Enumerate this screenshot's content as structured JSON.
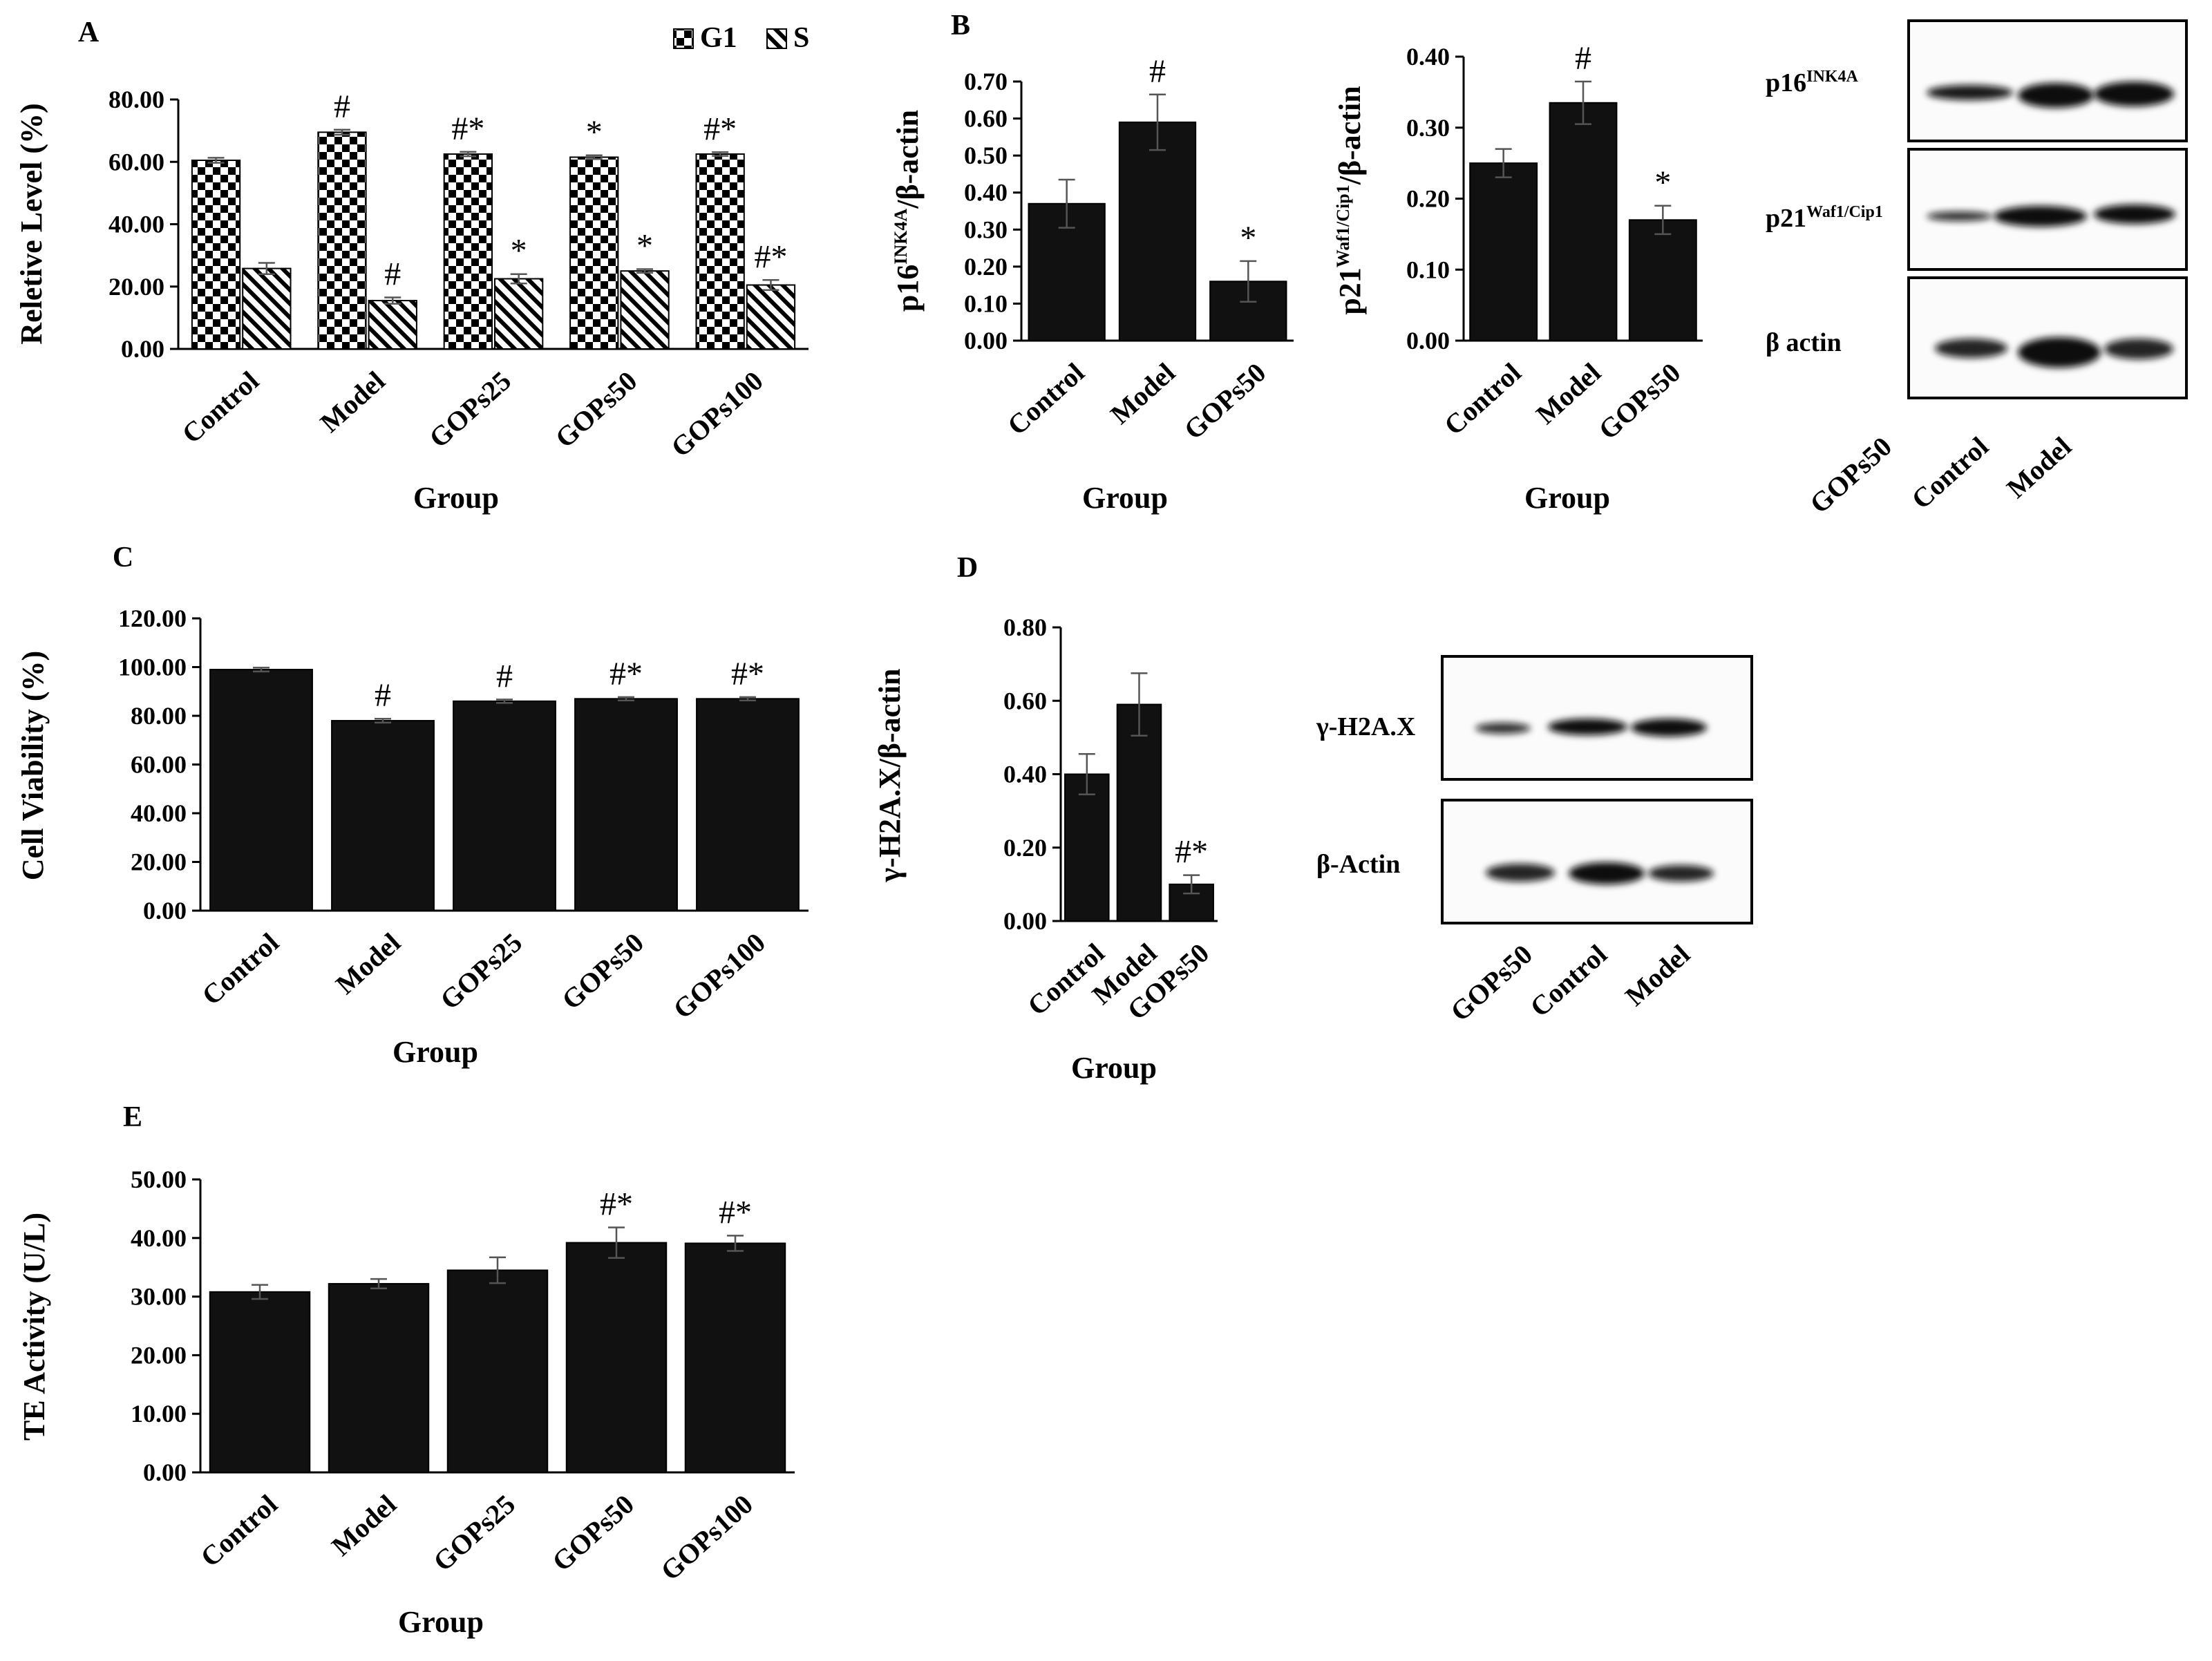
{
  "chart_data": [
    {
      "id": "A",
      "type": "bar",
      "panel_label": "A",
      "categories": [
        "Control",
        "Model",
        "GOPs25",
        "GOPs50",
        "GOPs100"
      ],
      "series": [
        {
          "name": "G1",
          "pattern": "checker",
          "values": [
            60.5,
            69.5,
            62.5,
            61.5,
            62.5
          ],
          "errors": [
            0.8,
            0.8,
            0.7,
            0.6,
            0.6
          ],
          "sig": [
            "",
            "#",
            "#*",
            "*",
            "#*"
          ]
        },
        {
          "name": "S",
          "pattern": "hatch",
          "values": [
            25.8,
            15.5,
            22.5,
            25.0,
            20.5
          ],
          "errors": [
            1.8,
            1.0,
            1.5,
            0.6,
            1.6
          ],
          "sig": [
            "",
            "#",
            "*",
            "*",
            "#*"
          ]
        }
      ],
      "yticks": [
        "0.00",
        "20.00",
        "40.00",
        "60.00",
        "80.00"
      ],
      "ylim": [
        0,
        80
      ],
      "ylabel": "Reletive Level (%)",
      "xlabel": "Group",
      "legend": "top-right"
    },
    {
      "id": "B1",
      "type": "bar",
      "panel_label": "B",
      "categories": [
        "Control",
        "Model",
        "GOPs50"
      ],
      "values": [
        0.37,
        0.59,
        0.16
      ],
      "errors": [
        0.065,
        0.075,
        0.055
      ],
      "sig": [
        "",
        "#",
        "*"
      ],
      "yticks": [
        "0.00",
        "0.10",
        "0.20",
        "0.30",
        "0.40",
        "0.50",
        "0.60",
        "0.70"
      ],
      "ylim": [
        0,
        0.7
      ],
      "ylabel": "p16INK4A/β-actin",
      "xlabel": "Group"
    },
    {
      "id": "B2",
      "type": "bar",
      "panel_label": "",
      "categories": [
        "Control",
        "Model",
        "GOPs50"
      ],
      "values": [
        0.25,
        0.335,
        0.17
      ],
      "errors": [
        0.02,
        0.03,
        0.02
      ],
      "sig": [
        "",
        "#",
        "*"
      ],
      "yticks": [
        "0.00",
        "0.10",
        "0.20",
        "0.30",
        "0.40"
      ],
      "ylim": [
        0,
        0.4
      ],
      "ylabel": "p21Waf1/Cip1/β-actin",
      "xlabel": "Group"
    },
    {
      "id": "C",
      "type": "bar",
      "panel_label": "C",
      "categories": [
        "Control",
        "Model",
        "GOPs25",
        "GOPs50",
        "GOPs100"
      ],
      "values": [
        99.0,
        78.0,
        86.0,
        87.0,
        87.0
      ],
      "errors": [
        0.8,
        0.8,
        0.7,
        0.7,
        0.7
      ],
      "sig": [
        "",
        "#",
        "#",
        "#*",
        "#*"
      ],
      "yticks": [
        "0.00",
        "20.00",
        "40.00",
        "60.00",
        "80.00",
        "100.00",
        "120.00"
      ],
      "ylim": [
        0,
        120
      ],
      "ylabel": "Cell Viability (%)",
      "xlabel": "Group"
    },
    {
      "id": "D",
      "type": "bar",
      "panel_label": "D",
      "categories": [
        "Control",
        "Model",
        "GOPs50"
      ],
      "values": [
        0.4,
        0.59,
        0.1
      ],
      "errors": [
        0.055,
        0.085,
        0.025
      ],
      "sig": [
        "",
        "",
        "#*"
      ],
      "yticks": [
        "0.00",
        "0.20",
        "0.40",
        "0.60",
        "0.80"
      ],
      "ylim": [
        0,
        0.8
      ],
      "ylabel": "γ-H2A.X/β-actin",
      "xlabel": "Group"
    },
    {
      "id": "E",
      "type": "bar",
      "panel_label": "E",
      "categories": [
        "Control",
        "Model",
        "GOPs25",
        "GOPs50",
        "GOPs100"
      ],
      "values": [
        30.8,
        32.2,
        34.5,
        39.2,
        39.1
      ],
      "errors": [
        1.2,
        0.8,
        2.2,
        2.6,
        1.3
      ],
      "sig": [
        "",
        "",
        "",
        "#*",
        "#*"
      ],
      "yticks": [
        "0.00",
        "10.00",
        "20.00",
        "30.00",
        "40.00",
        "50.00"
      ],
      "ylim": [
        0,
        50
      ],
      "ylabel": "TE Activity (U/L)",
      "xlabel": "Group"
    }
  ],
  "western_blots": [
    {
      "id": "blotB",
      "rows": [
        {
          "label": "p16",
          "sup": "INK4A"
        },
        {
          "label": "p21",
          "sup": "Waf1/Cip1"
        },
        {
          "label": "β actin",
          "sup": ""
        }
      ],
      "lanes": [
        "GOPs50",
        "Control",
        "Model"
      ]
    },
    {
      "id": "blotD",
      "rows": [
        {
          "label": "γ-H2A.X",
          "sup": ""
        },
        {
          "label": "β-Actin",
          "sup": ""
        }
      ],
      "lanes": [
        "GOPs50",
        "Control",
        "Model"
      ]
    }
  ],
  "colors": {
    "bar": "#111111",
    "axis": "#000000",
    "band": "#0d0d0d"
  }
}
